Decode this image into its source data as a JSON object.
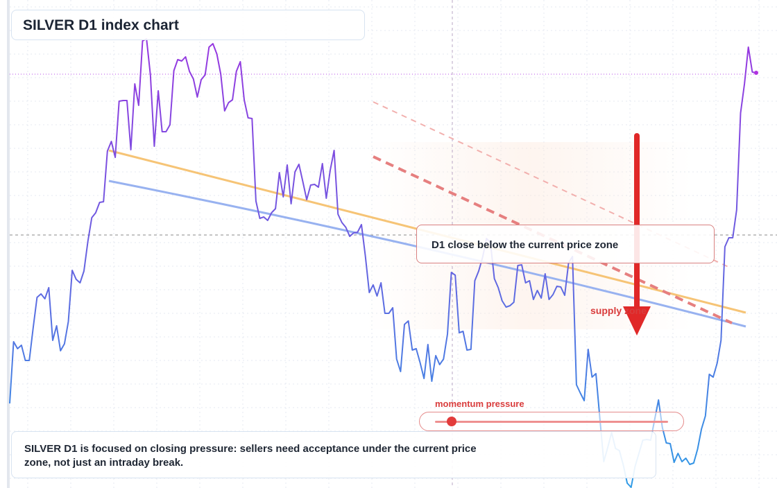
{
  "chart_data": {
    "type": "line",
    "title": "SILVER D1 index chart",
    "xlabel": "",
    "ylabel": "",
    "ylim": [
      0,
      704
    ],
    "grid": true,
    "legend": "none",
    "series": [
      {
        "values": [
          122,
          211,
          201,
          206,
          184,
          184,
          231,
          275,
          280,
          273,
          289,
          213,
          234,
          198,
          208,
          240,
          314,
          301,
          296,
          313,
          356,
          390,
          397,
          412,
          413,
          486,
          500,
          477,
          558,
          559,
          559,
          488,
          583,
          552,
          645,
          648,
          596,
          493,
          573,
          514,
          514,
          524,
          602,
          618,
          616,
          622,
          601,
          590,
          564,
          589,
          596,
          636,
          641,
          626,
          597,
          544,
          556,
          560,
          601,
          615,
          560,
          534,
          533,
          414,
          389,
          391,
          386,
          397,
          403,
          455,
          420,
          466,
          410,
          456,
          467,
          442,
          416,
          437,
          438,
          434,
          468,
          418,
          458,
          487,
          395,
          383,
          376,
          363,
          368,
          369,
          380,
          335,
          282,
          293,
          277,
          296,
          252,
          252,
          260,
          186,
          168,
          236,
          241,
          199,
          201,
          181,
          158,
          207,
          154,
          191,
          178,
          186,
          222,
          311,
          307,
          224,
          226,
          199,
          200,
          299,
          313,
          333,
          360,
          354,
          302,
          289,
          270,
          261,
          263,
          268,
          321,
          322,
          296,
          299,
          272,
          285,
          274,
          309,
          272,
          279,
          291,
          290,
          278,
          325,
          334,
          149,
          137,
          126,
          200,
          160,
          165,
          100,
          38,
          58,
          80,
          57,
          54,
          33,
          7,
          1,
          31,
          50,
          69,
          70,
          69,
          98,
          127,
          87,
          65,
          64,
          37,
          50,
          38,
          43,
          34,
          36,
          56,
          85,
          104,
          164,
          160,
          180,
          213,
          348,
          361,
          361,
          401,
          541,
          583,
          636,
          600,
          599
        ]
      }
    ],
    "annotations": {
      "callout": "D1 close below the current price zone",
      "supply": "supply zone",
      "momentum": "momentum pressure"
    },
    "note": "SILVER D1 is focused on closing pressure: sellers need acceptance under the current price zone, not just an intraday break."
  },
  "colors": {
    "line_low": "#3a8fe0",
    "line_high": "#9b2fe0",
    "trend_orange": "#f6c476",
    "trend_blue": "#98b2f0",
    "bearish_red": "#e23b3b",
    "grid": "#e4e9f0"
  }
}
